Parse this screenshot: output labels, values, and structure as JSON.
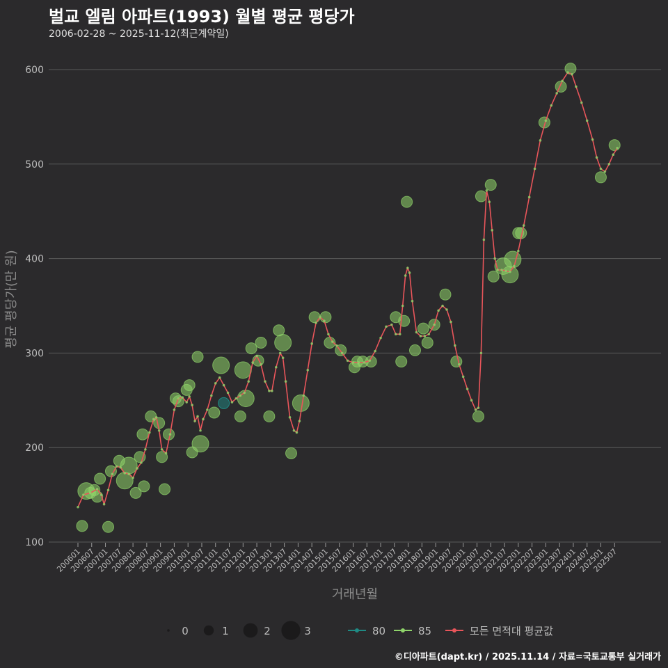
{
  "header": {
    "title": "벌교 엘림 아파트(1993) 월별 평균 평당가",
    "subtitle": "2006-02-28 ~ 2025-11-12(최근계약일)"
  },
  "footer": {
    "credit": "©디아파트(dapt.kr) / 2025.11.14 / 자료=국토교통부 실거래가"
  },
  "colors": {
    "bg": "#2b2a2c",
    "grid": "#5a5a5a",
    "s80": "#1f8a84",
    "s85": "#8fd36a",
    "avg": "#e8555a"
  },
  "chart_data": {
    "type": "scatter",
    "title": "벌교 엘림 아파트(1993) 월별 평균 평당가",
    "xlabel": "거래년월",
    "ylabel": "평균 평당가(만 원)",
    "ylim": [
      100,
      600
    ],
    "yticks": [
      100,
      200,
      300,
      400,
      500,
      600
    ],
    "xlim": [
      2006.0,
      2026.0
    ],
    "xticks": [
      "200601",
      "200607",
      "200701",
      "200707",
      "200801",
      "200807",
      "200901",
      "200907",
      "201001",
      "201007",
      "201101",
      "201107",
      "201201",
      "201207",
      "201301",
      "201307",
      "201401",
      "201407",
      "201501",
      "201507",
      "201601",
      "201607",
      "201701",
      "201707",
      "201801",
      "201807",
      "201901",
      "201907",
      "202001",
      "202007",
      "202101",
      "202107",
      "202201",
      "202207",
      "202301",
      "202307",
      "202401",
      "202407",
      "202501",
      "202507"
    ],
    "size_legend": {
      "title": "",
      "labels": [
        "0",
        "1",
        "2",
        "3"
      ]
    },
    "series": [
      {
        "name": "80",
        "points": [
          {
            "x": 2011.3,
            "y": 247,
            "count": 1
          }
        ]
      },
      {
        "name": "85",
        "points": [
          {
            "x": 2006.15,
            "y": 117,
            "count": 1
          },
          {
            "x": 2006.3,
            "y": 154,
            "count": 2
          },
          {
            "x": 2006.45,
            "y": 152,
            "count": 1
          },
          {
            "x": 2006.6,
            "y": 155,
            "count": 1
          },
          {
            "x": 2006.7,
            "y": 148,
            "count": 1
          },
          {
            "x": 2006.8,
            "y": 167,
            "count": 1
          },
          {
            "x": 2007.1,
            "y": 116,
            "count": 1
          },
          {
            "x": 2007.2,
            "y": 175,
            "count": 1
          },
          {
            "x": 2007.5,
            "y": 186,
            "count": 1
          },
          {
            "x": 2007.7,
            "y": 165,
            "count": 2
          },
          {
            "x": 2007.85,
            "y": 181,
            "count": 2
          },
          {
            "x": 2008.1,
            "y": 152,
            "count": 1
          },
          {
            "x": 2008.25,
            "y": 190,
            "count": 1
          },
          {
            "x": 2008.35,
            "y": 214,
            "count": 1
          },
          {
            "x": 2008.4,
            "y": 159,
            "count": 1
          },
          {
            "x": 2008.65,
            "y": 233,
            "count": 1
          },
          {
            "x": 2008.95,
            "y": 226,
            "count": 1
          },
          {
            "x": 2009.05,
            "y": 190,
            "count": 1
          },
          {
            "x": 2009.15,
            "y": 156,
            "count": 1
          },
          {
            "x": 2009.3,
            "y": 214,
            "count": 1
          },
          {
            "x": 2009.55,
            "y": 252,
            "count": 1
          },
          {
            "x": 2009.65,
            "y": 249,
            "count": 1
          },
          {
            "x": 2009.95,
            "y": 261,
            "count": 1
          },
          {
            "x": 2010.05,
            "y": 266,
            "count": 1
          },
          {
            "x": 2010.15,
            "y": 195,
            "count": 1
          },
          {
            "x": 2010.35,
            "y": 296,
            "count": 1
          },
          {
            "x": 2010.45,
            "y": 204,
            "count": 2
          },
          {
            "x": 2010.95,
            "y": 237,
            "count": 1
          },
          {
            "x": 2011.2,
            "y": 287,
            "count": 2
          },
          {
            "x": 2011.9,
            "y": 233,
            "count": 1
          },
          {
            "x": 2012.0,
            "y": 282,
            "count": 2
          },
          {
            "x": 2012.1,
            "y": 252,
            "count": 2
          },
          {
            "x": 2012.3,
            "y": 305,
            "count": 1
          },
          {
            "x": 2012.55,
            "y": 292,
            "count": 1
          },
          {
            "x": 2012.65,
            "y": 311,
            "count": 1
          },
          {
            "x": 2012.95,
            "y": 233,
            "count": 1
          },
          {
            "x": 2013.3,
            "y": 324,
            "count": 1
          },
          {
            "x": 2013.45,
            "y": 311,
            "count": 2
          },
          {
            "x": 2013.75,
            "y": 194,
            "count": 1
          },
          {
            "x": 2014.1,
            "y": 247,
            "count": 2
          },
          {
            "x": 2014.6,
            "y": 338,
            "count": 1
          },
          {
            "x": 2015.0,
            "y": 338,
            "count": 1
          },
          {
            "x": 2015.15,
            "y": 311,
            "count": 1
          },
          {
            "x": 2015.55,
            "y": 303,
            "count": 1
          },
          {
            "x": 2016.05,
            "y": 285,
            "count": 1
          },
          {
            "x": 2016.15,
            "y": 291,
            "count": 1
          },
          {
            "x": 2016.35,
            "y": 291,
            "count": 1
          },
          {
            "x": 2016.65,
            "y": 291,
            "count": 1
          },
          {
            "x": 2017.55,
            "y": 338,
            "count": 1
          },
          {
            "x": 2017.75,
            "y": 291,
            "count": 1
          },
          {
            "x": 2017.85,
            "y": 334,
            "count": 1
          },
          {
            "x": 2017.95,
            "y": 460,
            "count": 1
          },
          {
            "x": 2018.25,
            "y": 303,
            "count": 1
          },
          {
            "x": 2018.55,
            "y": 326,
            "count": 1
          },
          {
            "x": 2018.7,
            "y": 311,
            "count": 1
          },
          {
            "x": 2018.95,
            "y": 330,
            "count": 1
          },
          {
            "x": 2019.35,
            "y": 362,
            "count": 1
          },
          {
            "x": 2019.75,
            "y": 291,
            "count": 1
          },
          {
            "x": 2020.55,
            "y": 233,
            "count": 1
          },
          {
            "x": 2020.65,
            "y": 466,
            "count": 1
          },
          {
            "x": 2021.0,
            "y": 478,
            "count": 1
          },
          {
            "x": 2021.1,
            "y": 381,
            "count": 1
          },
          {
            "x": 2021.45,
            "y": 392,
            "count": 2
          },
          {
            "x": 2021.7,
            "y": 383,
            "count": 2
          },
          {
            "x": 2021.8,
            "y": 399,
            "count": 2
          },
          {
            "x": 2022.0,
            "y": 427,
            "count": 1
          },
          {
            "x": 2022.1,
            "y": 427,
            "count": 1
          },
          {
            "x": 2022.95,
            "y": 544,
            "count": 1
          },
          {
            "x": 2023.55,
            "y": 582,
            "count": 1
          },
          {
            "x": 2023.9,
            "y": 601,
            "count": 1
          },
          {
            "x": 2025.0,
            "y": 486,
            "count": 1
          },
          {
            "x": 2025.5,
            "y": 520,
            "count": 1
          }
        ]
      },
      {
        "name": "모든 면적대 평균값",
        "line": [
          [
            2006.0,
            137
          ],
          [
            2006.2,
            150
          ],
          [
            2006.45,
            152
          ],
          [
            2006.7,
            156
          ],
          [
            2006.85,
            150
          ],
          [
            2006.95,
            140
          ],
          [
            2007.1,
            155
          ],
          [
            2007.25,
            172
          ],
          [
            2007.4,
            180
          ],
          [
            2007.55,
            179
          ],
          [
            2007.7,
            173
          ],
          [
            2007.85,
            172
          ],
          [
            2008.0,
            168
          ],
          [
            2008.15,
            178
          ],
          [
            2008.3,
            184
          ],
          [
            2008.45,
            198
          ],
          [
            2008.6,
            216
          ],
          [
            2008.75,
            230
          ],
          [
            2008.85,
            232
          ],
          [
            2008.95,
            218
          ],
          [
            2009.05,
            198
          ],
          [
            2009.2,
            194
          ],
          [
            2009.35,
            214
          ],
          [
            2009.5,
            240
          ],
          [
            2009.65,
            252
          ],
          [
            2009.8,
            253
          ],
          [
            2009.95,
            248
          ],
          [
            2010.05,
            254
          ],
          [
            2010.15,
            245
          ],
          [
            2010.25,
            228
          ],
          [
            2010.35,
            233
          ],
          [
            2010.45,
            218
          ],
          [
            2010.55,
            230
          ],
          [
            2010.7,
            240
          ],
          [
            2010.85,
            255
          ],
          [
            2011.0,
            268
          ],
          [
            2011.15,
            274
          ],
          [
            2011.3,
            266
          ],
          [
            2011.45,
            258
          ],
          [
            2011.6,
            248
          ],
          [
            2011.75,
            252
          ],
          [
            2011.9,
            255
          ],
          [
            2012.05,
            258
          ],
          [
            2012.2,
            270
          ],
          [
            2012.35,
            290
          ],
          [
            2012.5,
            297
          ],
          [
            2012.65,
            288
          ],
          [
            2012.8,
            270
          ],
          [
            2012.95,
            260
          ],
          [
            2013.05,
            260
          ],
          [
            2013.2,
            285
          ],
          [
            2013.35,
            300
          ],
          [
            2013.45,
            295
          ],
          [
            2013.55,
            270
          ],
          [
            2013.7,
            232
          ],
          [
            2013.85,
            218
          ],
          [
            2013.95,
            216
          ],
          [
            2014.05,
            228
          ],
          [
            2014.2,
            255
          ],
          [
            2014.35,
            282
          ],
          [
            2014.5,
            310
          ],
          [
            2014.65,
            332
          ],
          [
            2014.8,
            338
          ],
          [
            2014.95,
            334
          ],
          [
            2015.1,
            320
          ],
          [
            2015.25,
            312
          ],
          [
            2015.4,
            308
          ],
          [
            2015.6,
            300
          ],
          [
            2015.8,
            292
          ],
          [
            2016.0,
            290
          ],
          [
            2016.2,
            290
          ],
          [
            2016.4,
            290
          ],
          [
            2016.6,
            292
          ],
          [
            2016.8,
            302
          ],
          [
            2017.0,
            316
          ],
          [
            2017.2,
            328
          ],
          [
            2017.4,
            330
          ],
          [
            2017.55,
            320
          ],
          [
            2017.7,
            320
          ],
          [
            2017.8,
            350
          ],
          [
            2017.9,
            382
          ],
          [
            2017.98,
            390
          ],
          [
            2018.05,
            385
          ],
          [
            2018.15,
            355
          ],
          [
            2018.3,
            322
          ],
          [
            2018.45,
            318
          ],
          [
            2018.6,
            318
          ],
          [
            2018.75,
            320
          ],
          [
            2018.95,
            330
          ],
          [
            2019.1,
            345
          ],
          [
            2019.25,
            350
          ],
          [
            2019.4,
            346
          ],
          [
            2019.55,
            333
          ],
          [
            2019.7,
            308
          ],
          [
            2019.85,
            288
          ],
          [
            2020.0,
            275
          ],
          [
            2020.15,
            262
          ],
          [
            2020.3,
            250
          ],
          [
            2020.45,
            240
          ],
          [
            2020.55,
            242
          ],
          [
            2020.65,
            300
          ],
          [
            2020.75,
            420
          ],
          [
            2020.85,
            472
          ],
          [
            2020.95,
            460
          ],
          [
            2021.05,
            430
          ],
          [
            2021.15,
            400
          ],
          [
            2021.25,
            388
          ],
          [
            2021.4,
            388
          ],
          [
            2021.55,
            387
          ],
          [
            2021.7,
            386
          ],
          [
            2021.85,
            392
          ],
          [
            2022.0,
            408
          ],
          [
            2022.2,
            435
          ],
          [
            2022.4,
            465
          ],
          [
            2022.6,
            495
          ],
          [
            2022.8,
            525
          ],
          [
            2023.0,
            546
          ],
          [
            2023.2,
            562
          ],
          [
            2023.4,
            575
          ],
          [
            2023.6,
            588
          ],
          [
            2023.8,
            597
          ],
          [
            2023.95,
            595
          ],
          [
            2024.1,
            582
          ],
          [
            2024.3,
            565
          ],
          [
            2024.5,
            546
          ],
          [
            2024.7,
            526
          ],
          [
            2024.85,
            507
          ],
          [
            2025.0,
            495
          ],
          [
            2025.15,
            492
          ],
          [
            2025.3,
            500
          ],
          [
            2025.45,
            510
          ],
          [
            2025.6,
            517
          ]
        ]
      }
    ]
  }
}
